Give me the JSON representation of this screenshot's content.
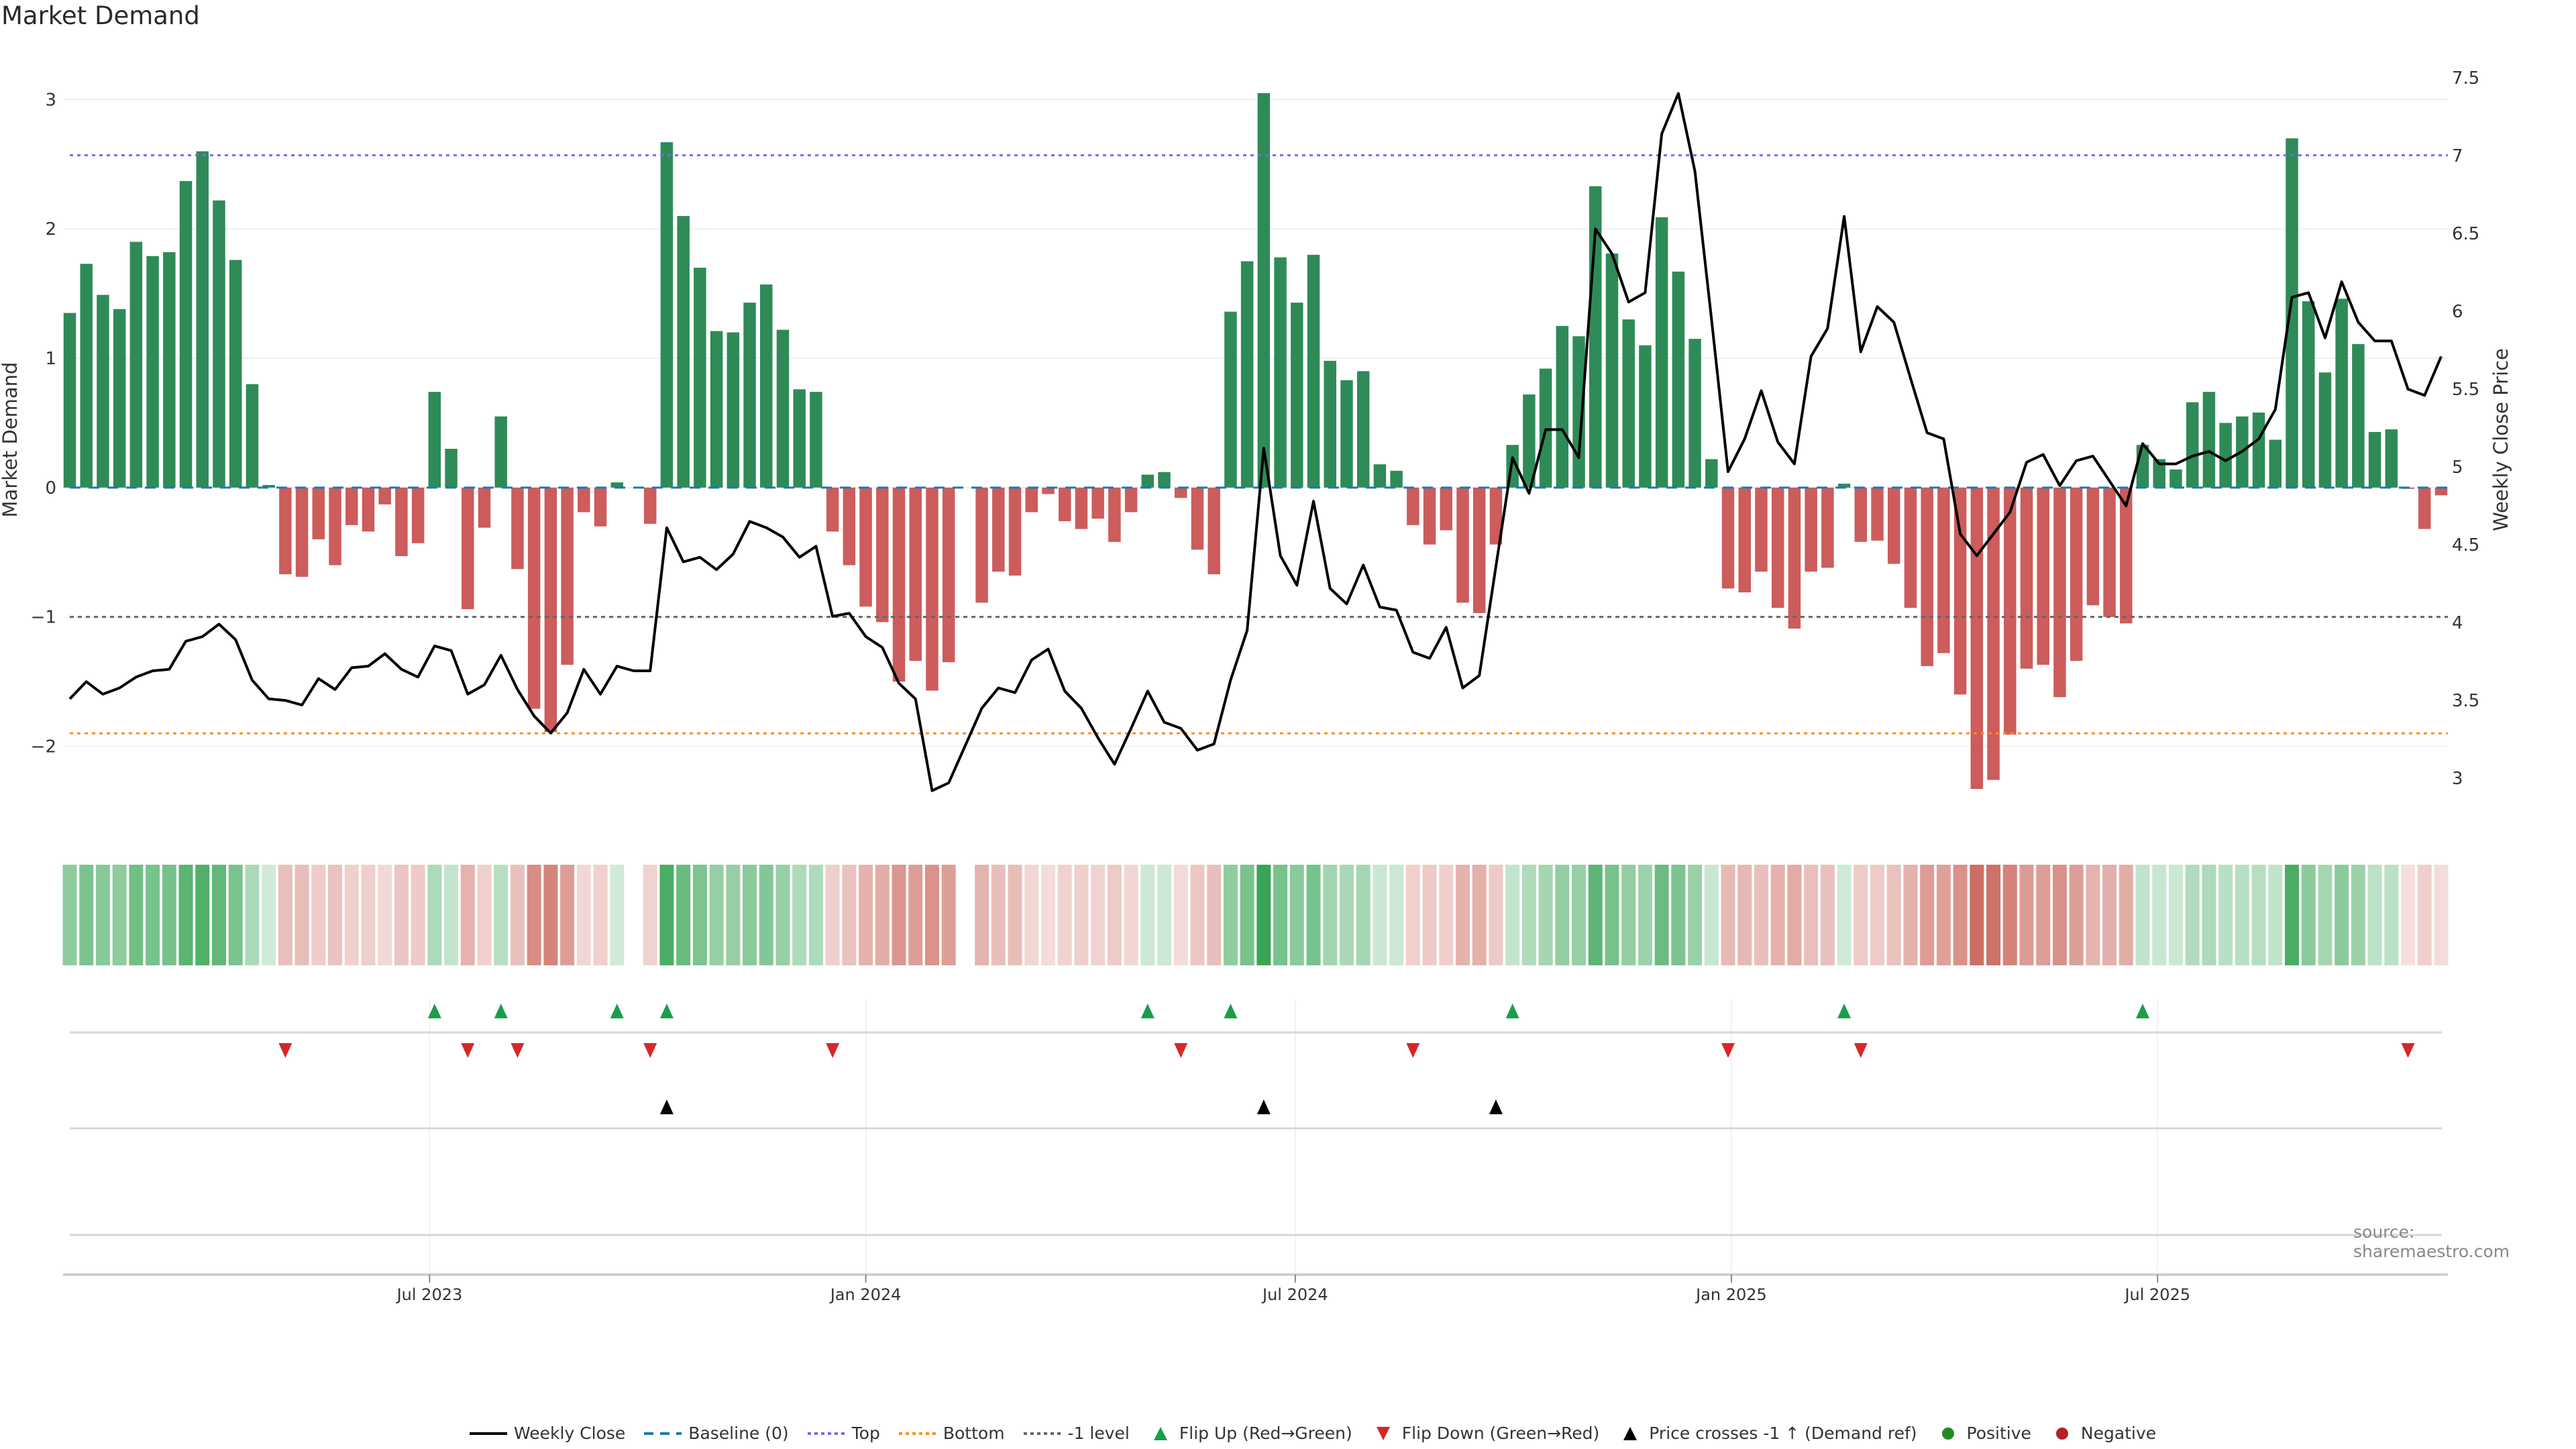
{
  "chart_data": {
    "type": "bar",
    "title": "Market Demand",
    "ylabel": "Market Demand",
    "y2label": "Weekly Close Price",
    "ylim": [
      -2.62,
      3.36
    ],
    "y2lim": [
      2.69,
      7.66
    ],
    "yticks": [
      -2,
      -1,
      0,
      1,
      2,
      3
    ],
    "ytick_labels": [
      "−2",
      "−1",
      "0",
      "1",
      "2",
      "3"
    ],
    "y2ticks": [
      3,
      3.5,
      4,
      4.5,
      5,
      5.5,
      6,
      6.5,
      7,
      7.5
    ],
    "y2tick_labels": [
      "3",
      "3.5",
      "4",
      "4.5",
      "5",
      "5.5",
      "6",
      "6.5",
      "7",
      "7.5"
    ],
    "x_ticks": [
      {
        "label": "Jul 2023",
        "week_index": 22.7
      },
      {
        "label": "Jan 2024",
        "week_index": 49
      },
      {
        "label": "Jul 2024",
        "week_index": 74.9
      },
      {
        "label": "Jan 2025",
        "week_index": 101.2
      },
      {
        "label": "Jul 2025",
        "week_index": 126.9
      }
    ],
    "reference_lines": {
      "top": 2.57,
      "bottom": -1.9,
      "minus_one": -1.0,
      "baseline": 0
    },
    "demand": [
      1.35,
      1.73,
      1.49,
      1.38,
      1.9,
      1.79,
      1.82,
      2.37,
      2.6,
      2.22,
      1.76,
      0.8,
      0.02,
      -0.67,
      -0.69,
      -0.4,
      -0.6,
      -0.29,
      -0.34,
      -0.13,
      -0.53,
      -0.43,
      0.74,
      0.3,
      -0.94,
      -0.31,
      0.55,
      -0.63,
      -1.71,
      -1.89,
      -1.37,
      -0.19,
      -0.3,
      0.04,
      null,
      -0.28,
      2.67,
      2.1,
      1.7,
      1.21,
      1.2,
      1.43,
      1.57,
      1.22,
      0.76,
      0.74,
      -0.34,
      -0.6,
      -0.92,
      -1.04,
      -1.5,
      -1.34,
      -1.57,
      -1.35,
      null,
      -0.89,
      -0.65,
      -0.68,
      -0.19,
      -0.05,
      -0.26,
      -0.32,
      -0.24,
      -0.42,
      -0.19,
      0.1,
      0.12,
      -0.08,
      -0.48,
      -0.67,
      1.36,
      1.75,
      3.05,
      1.78,
      1.43,
      1.8,
      0.98,
      0.83,
      0.9,
      0.18,
      0.13,
      -0.29,
      -0.44,
      -0.33,
      -0.89,
      -0.97,
      -0.44,
      0.33,
      0.72,
      0.92,
      1.25,
      1.17,
      2.33,
      1.81,
      1.3,
      1.1,
      2.09,
      1.67,
      1.15,
      0.22,
      -0.78,
      -0.81,
      -0.65,
      -0.93,
      -1.09,
      -0.65,
      -0.62,
      0.03,
      -0.42,
      -0.41,
      -0.59,
      -0.93,
      -1.38,
      -1.28,
      -1.6,
      -2.33,
      -2.26,
      -1.91,
      -1.4,
      -1.37,
      -1.62,
      -1.34,
      -0.91,
      -1.0,
      -1.05,
      0.33,
      0.22,
      0.14,
      0.66,
      0.74,
      0.5,
      0.55,
      0.58,
      0.37,
      2.7,
      1.44,
      0.89,
      1.46,
      1.11,
      0.43,
      0.45,
      -0.01,
      -0.32,
      -0.06
    ],
    "price": [
      3.51,
      3.62,
      3.54,
      3.58,
      3.65,
      3.69,
      3.7,
      3.88,
      3.91,
      3.99,
      3.89,
      3.63,
      3.51,
      3.5,
      3.47,
      3.64,
      3.57,
      3.71,
      3.72,
      3.8,
      3.7,
      3.65,
      3.85,
      3.82,
      3.54,
      3.6,
      3.79,
      3.57,
      3.4,
      3.29,
      3.42,
      3.7,
      3.54,
      3.72,
      3.69,
      3.69,
      4.61,
      4.39,
      4.42,
      4.34,
      4.44,
      4.65,
      4.61,
      4.55,
      4.42,
      4.49,
      4.04,
      4.06,
      3.91,
      3.84,
      3.61,
      3.51,
      2.92,
      2.97,
      3.21,
      3.45,
      3.58,
      3.55,
      3.76,
      3.83,
      3.56,
      3.45,
      3.26,
      3.09,
      3.32,
      3.56,
      3.36,
      3.32,
      3.18,
      3.22,
      3.63,
      3.95,
      5.12,
      4.43,
      4.24,
      4.78,
      4.22,
      4.12,
      4.37,
      4.1,
      4.08,
      3.81,
      3.77,
      3.97,
      3.58,
      3.66,
      4.36,
      5.06,
      4.83,
      5.24,
      5.24,
      5.06,
      6.53,
      6.37,
      6.06,
      6.12,
      7.14,
      7.4,
      6.9,
      5.95,
      4.97,
      5.18,
      5.49,
      5.16,
      5.02,
      5.71,
      5.89,
      6.61,
      5.74,
      6.03,
      5.93,
      5.57,
      5.22,
      5.18,
      4.57,
      4.43,
      4.57,
      4.71,
      5.03,
      5.08,
      4.88,
      5.04,
      5.07,
      4.91,
      4.75,
      5.15,
      5.02,
      5.02,
      5.07,
      5.1,
      5.04,
      5.1,
      5.18,
      5.37,
      6.09,
      6.12,
      5.83,
      6.19,
      5.93,
      5.81,
      5.81,
      5.5,
      5.46,
      5.71
    ],
    "flip_up_weeks": [
      23,
      27,
      34,
      37,
      66,
      71,
      88,
      108,
      126
    ],
    "flip_down_weeks": [
      14,
      25,
      28,
      36,
      47,
      68,
      82,
      101,
      109,
      142
    ],
    "price_cross_weeks": [
      37,
      73,
      87
    ],
    "legend": [
      {
        "key": "weekly_close",
        "label": "Weekly Close"
      },
      {
        "key": "baseline",
        "label": "Baseline (0)"
      },
      {
        "key": "top",
        "label": "Top"
      },
      {
        "key": "bottom",
        "label": "Bottom"
      },
      {
        "key": "minus_one",
        "label": "-1 level"
      },
      {
        "key": "flip_up",
        "label": "Flip Up (Red→Green)"
      },
      {
        "key": "flip_down",
        "label": "Flip Down (Green→Red)"
      },
      {
        "key": "price_cross",
        "label": "Price crosses -1 ↑ (Demand ref)"
      },
      {
        "key": "positive",
        "label": "Positive"
      },
      {
        "key": "negative",
        "label": "Negative"
      }
    ],
    "legend_position": "bottom-center",
    "source": "source: sharemaestro.com",
    "colors": {
      "positive_bar": "#2e8b57",
      "negative_bar": "#cd5c5c",
      "top": "#7b68ee",
      "bottom": "#ff8c1a",
      "minus_one": "#666666",
      "baseline": "#1f77b4",
      "price": "#000000",
      "flip_up": "#1a9e4a",
      "flip_down": "#d62728",
      "price_cross": "#000000",
      "positive_dot": "#228b22",
      "negative_dot": "#b22222"
    }
  }
}
